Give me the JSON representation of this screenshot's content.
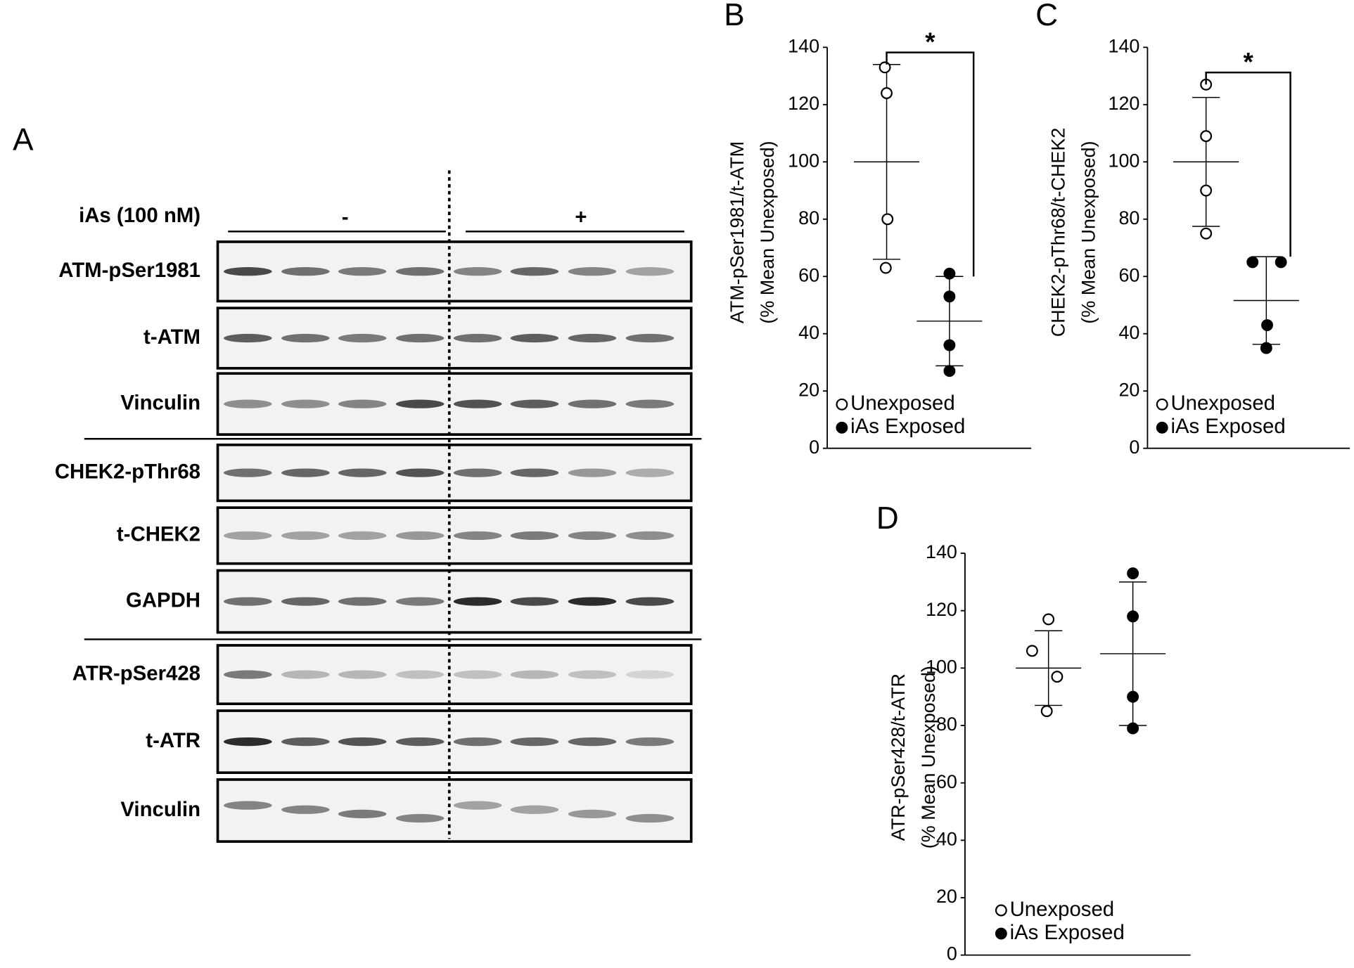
{
  "blot": {
    "label": "A",
    "treatment": "iAs (100 nM)",
    "groups": [
      "-",
      "+"
    ],
    "rows": [
      "ATM-pSer1981",
      "t-ATM",
      "Vinculin",
      "CHEK2-pThr68",
      "t-CHEK2",
      "GAPDH",
      "ATR-pSer428",
      "t-ATR",
      "Vinculin"
    ]
  },
  "chart_data": [
    {
      "type": "scatter",
      "panel": "B",
      "ylabel": [
        "ATM-pSer1981/t-ATM",
        "(% Mean Unexposed)"
      ],
      "ylim": [
        0,
        140
      ],
      "yticks": [
        0,
        20,
        40,
        60,
        80,
        100,
        120,
        140
      ],
      "significance": "*",
      "series": [
        {
          "name": "Unexposed",
          "color": "#000000",
          "filled": false,
          "values": [
            133,
            124,
            80,
            63
          ],
          "mean": 100,
          "sd": 34
        },
        {
          "name": "iAs Exposed",
          "color": "#000000",
          "filled": true,
          "values": [
            61,
            53,
            36,
            27
          ],
          "mean": 44.4,
          "sd": 15.6
        }
      ]
    },
    {
      "type": "scatter",
      "panel": "C",
      "ylabel": [
        "CHEK2-pThr68/t-CHEK2",
        "(% Mean Unexposed)"
      ],
      "ylim": [
        0,
        140
      ],
      "yticks": [
        0,
        20,
        40,
        60,
        80,
        100,
        120,
        140
      ],
      "significance": "*",
      "series": [
        {
          "name": "Unexposed",
          "color": "#000000",
          "filled": false,
          "values": [
            127,
            109,
            90,
            75
          ],
          "mean": 100,
          "sd": 22.5
        },
        {
          "name": "iAs Exposed",
          "color": "#000000",
          "filled": true,
          "values": [
            65,
            65,
            43,
            35
          ],
          "mean": 51.6,
          "sd": 15.3
        }
      ]
    },
    {
      "type": "scatter",
      "panel": "D",
      "ylabel": [
        "ATR-pSer428/t-ATR",
        "(% Mean Unexposed)"
      ],
      "ylim": [
        0,
        140
      ],
      "yticks": [
        0,
        20,
        40,
        60,
        80,
        100,
        120,
        140
      ],
      "series": [
        {
          "name": "Unexposed",
          "color": "#000000",
          "filled": false,
          "values": [
            117,
            106,
            97,
            85
          ],
          "mean": 100,
          "sd": 13
        },
        {
          "name": "iAs Exposed",
          "color": "#000000",
          "filled": true,
          "values": [
            133,
            118,
            90,
            79
          ],
          "mean": 105,
          "sd": 25
        }
      ]
    }
  ]
}
